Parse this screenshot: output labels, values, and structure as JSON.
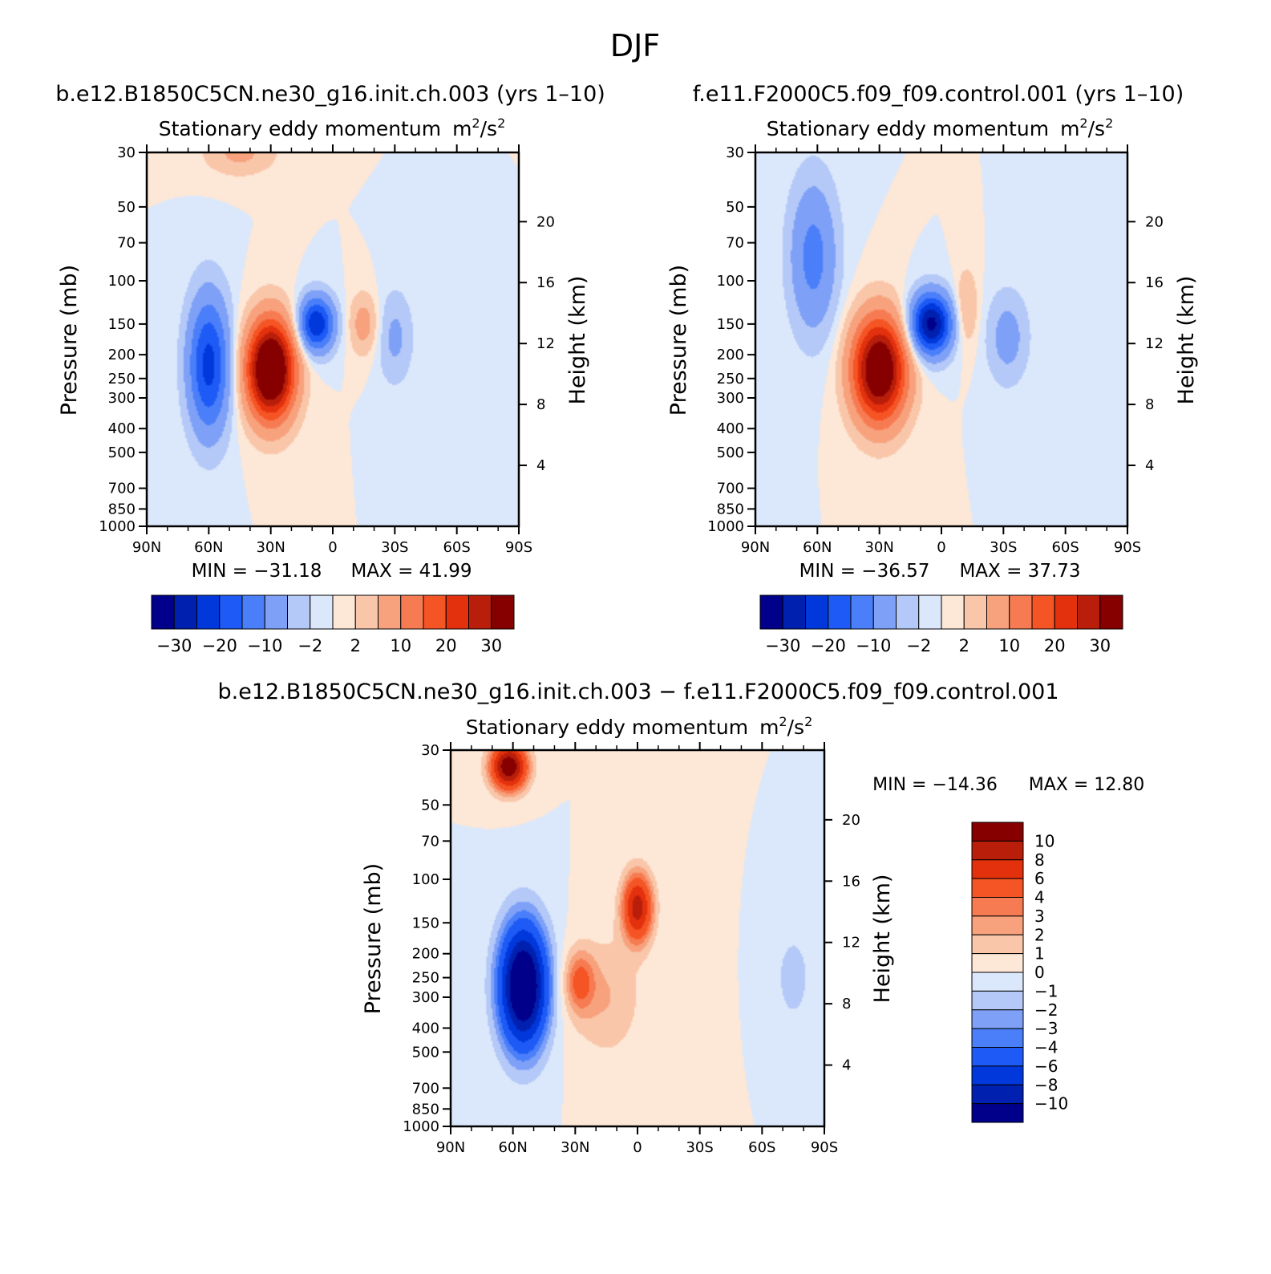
{
  "figure": {
    "title": "DJF"
  },
  "chart_data": [
    {
      "type": "heatmap",
      "run_title": "b.e12.B1850C5CN.ne30_g16.init.ch.003 (yrs 1–10)",
      "title": "Stationary eddy momentum",
      "units": "m",
      "units_exp": "2",
      "units_mid": "/s",
      "units_exp2": "2",
      "xlabel": "",
      "ylabel": "Pressure (mb)",
      "y2label": "Height (km)",
      "x_ticks": [
        {
          "value": 90,
          "label": "90N"
        },
        {
          "value": 60,
          "label": "60N"
        },
        {
          "value": 30,
          "label": "30N"
        },
        {
          "value": 0,
          "label": "0"
        },
        {
          "value": -30,
          "label": "30S"
        },
        {
          "value": -60,
          "label": "60S"
        },
        {
          "value": -90,
          "label": "90S"
        }
      ],
      "y_ticks": [
        {
          "value": 30,
          "label": "30"
        },
        {
          "value": 50,
          "label": "50"
        },
        {
          "value": 70,
          "label": "70"
        },
        {
          "value": 100,
          "label": "100"
        },
        {
          "value": 150,
          "label": "150"
        },
        {
          "value": 200,
          "label": "200"
        },
        {
          "value": 250,
          "label": "250"
        },
        {
          "value": 300,
          "label": "300"
        },
        {
          "value": 400,
          "label": "400"
        },
        {
          "value": 500,
          "label": "500"
        },
        {
          "value": 700,
          "label": "700"
        },
        {
          "value": 850,
          "label": "850"
        },
        {
          "value": 1000,
          "label": "1000"
        }
      ],
      "height_ticks": [
        {
          "value": 20,
          "label": "20"
        },
        {
          "value": 16,
          "label": "16"
        },
        {
          "value": 12,
          "label": "12"
        },
        {
          "value": 8,
          "label": "8"
        },
        {
          "value": 4,
          "label": "4"
        }
      ],
      "xlim": [
        90,
        -90
      ],
      "ylim": [
        30,
        1000
      ],
      "min_text": "MIN = −31.18",
      "max_text": "MAX = 41.99",
      "levels": [
        -30,
        -25,
        -20,
        -15,
        -10,
        -5,
        -2,
        0,
        2,
        5,
        10,
        15,
        20,
        25,
        30
      ],
      "colorbar_labels": [
        "−30",
        "−20",
        "−10",
        "−2",
        "2",
        "10",
        "20",
        "30"
      ],
      "features": [
        {
          "lat": 60,
          "p": 220,
          "amp": -22,
          "dlat": 7,
          "dlogp": 0.45
        },
        {
          "lat": 30,
          "p": 230,
          "amp": 45,
          "dlat": 8,
          "dlogp": 0.32
        },
        {
          "lat": 8,
          "p": 150,
          "amp": -25,
          "dlat": 6,
          "dlogp": 0.18
        },
        {
          "lat": -15,
          "p": 150,
          "amp": 7,
          "dlat": 5,
          "dlogp": 0.2
        },
        {
          "lat": -30,
          "p": 170,
          "amp": -6,
          "dlat": 6,
          "dlogp": 0.3
        },
        {
          "lat": 45,
          "p": 30,
          "amp": 6,
          "dlat": 12,
          "dlogp": 0.15
        }
      ]
    },
    {
      "type": "heatmap",
      "run_title": "f.e11.F2000C5.f09_f09.control.001 (yrs 1–10)",
      "title": "Stationary eddy momentum",
      "units": "m",
      "units_exp": "2",
      "units_mid": "/s",
      "units_exp2": "2",
      "xlabel": "",
      "ylabel": "Pressure (mb)",
      "y2label": "Height (km)",
      "x_ticks": [
        {
          "value": 90,
          "label": "90N"
        },
        {
          "value": 60,
          "label": "60N"
        },
        {
          "value": 30,
          "label": "30N"
        },
        {
          "value": 0,
          "label": "0"
        },
        {
          "value": -30,
          "label": "30S"
        },
        {
          "value": -60,
          "label": "60S"
        },
        {
          "value": -90,
          "label": "90S"
        }
      ],
      "y_ticks": [
        {
          "value": 30,
          "label": "30"
        },
        {
          "value": 50,
          "label": "50"
        },
        {
          "value": 70,
          "label": "70"
        },
        {
          "value": 100,
          "label": "100"
        },
        {
          "value": 150,
          "label": "150"
        },
        {
          "value": 200,
          "label": "200"
        },
        {
          "value": 250,
          "label": "250"
        },
        {
          "value": 300,
          "label": "300"
        },
        {
          "value": 400,
          "label": "400"
        },
        {
          "value": 500,
          "label": "500"
        },
        {
          "value": 700,
          "label": "700"
        },
        {
          "value": 850,
          "label": "850"
        },
        {
          "value": 1000,
          "label": "1000"
        }
      ],
      "height_ticks": [
        {
          "value": 20,
          "label": "20"
        },
        {
          "value": 16,
          "label": "16"
        },
        {
          "value": 12,
          "label": "12"
        },
        {
          "value": 8,
          "label": "8"
        },
        {
          "value": 4,
          "label": "4"
        }
      ],
      "xlim": [
        90,
        -90
      ],
      "ylim": [
        30,
        1000
      ],
      "min_text": "MIN = −36.57",
      "max_text": "MAX = 37.73",
      "levels": [
        -30,
        -25,
        -20,
        -15,
        -10,
        -5,
        -2,
        0,
        2,
        5,
        10,
        15,
        20,
        25,
        30
      ],
      "colorbar_labels": [
        "−30",
        "−20",
        "−10",
        "−2",
        "2",
        "10",
        "20",
        "30"
      ],
      "features": [
        {
          "lat": 62,
          "p": 80,
          "amp": -12,
          "dlat": 8,
          "dlogp": 0.5
        },
        {
          "lat": 30,
          "p": 230,
          "amp": 40,
          "dlat": 9,
          "dlogp": 0.34
        },
        {
          "lat": 5,
          "p": 150,
          "amp": -32,
          "dlat": 7,
          "dlogp": 0.2
        },
        {
          "lat": -12,
          "p": 130,
          "amp": 6,
          "dlat": 4,
          "dlogp": 0.25
        },
        {
          "lat": -32,
          "p": 170,
          "amp": -7,
          "dlat": 7,
          "dlogp": 0.3
        }
      ]
    },
    {
      "type": "heatmap",
      "run_title": "b.e12.B1850C5CN.ne30_g16.init.ch.003 − f.e11.F2000C5.f09_f09.control.001",
      "title": "Stationary eddy momentum",
      "units": "m",
      "units_exp": "2",
      "units_mid": "/s",
      "units_exp2": "2",
      "xlabel": "",
      "ylabel": "Pressure (mb)",
      "y2label": "Height (km)",
      "x_ticks": [
        {
          "value": 90,
          "label": "90N"
        },
        {
          "value": 60,
          "label": "60N"
        },
        {
          "value": 30,
          "label": "30N"
        },
        {
          "value": 0,
          "label": "0"
        },
        {
          "value": -30,
          "label": "30S"
        },
        {
          "value": -60,
          "label": "60S"
        },
        {
          "value": -90,
          "label": "90S"
        }
      ],
      "y_ticks": [
        {
          "value": 30,
          "label": "30"
        },
        {
          "value": 50,
          "label": "50"
        },
        {
          "value": 70,
          "label": "70"
        },
        {
          "value": 100,
          "label": "100"
        },
        {
          "value": 150,
          "label": "150"
        },
        {
          "value": 200,
          "label": "200"
        },
        {
          "value": 250,
          "label": "250"
        },
        {
          "value": 300,
          "label": "300"
        },
        {
          "value": 400,
          "label": "400"
        },
        {
          "value": 500,
          "label": "500"
        },
        {
          "value": 700,
          "label": "700"
        },
        {
          "value": 850,
          "label": "850"
        },
        {
          "value": 1000,
          "label": "1000"
        }
      ],
      "height_ticks": [
        {
          "value": 20,
          "label": "20"
        },
        {
          "value": 16,
          "label": "16"
        },
        {
          "value": 12,
          "label": "12"
        },
        {
          "value": 8,
          "label": "8"
        },
        {
          "value": 4,
          "label": "4"
        }
      ],
      "xlim": [
        90,
        -90
      ],
      "ylim": [
        30,
        1000
      ],
      "min_text": "MIN = −14.36",
      "max_text": "MAX = 12.80",
      "levels": [
        -10,
        -8,
        -6,
        -4,
        -3,
        -2,
        -1,
        0,
        1,
        2,
        3,
        4,
        6,
        8,
        10
      ],
      "colorbar_labels": [
        "10",
        "8",
        "6",
        "4",
        "3",
        "2",
        "1",
        "0",
        "−1",
        "−2",
        "−3",
        "−4",
        "−6",
        "−8",
        "−10"
      ],
      "features": [
        {
          "lat": 55,
          "p": 270,
          "amp": -14,
          "dlat": 8,
          "dlogp": 0.4
        },
        {
          "lat": 62,
          "p": 35,
          "amp": 12,
          "dlat": 6,
          "dlogp": 0.15
        },
        {
          "lat": 0,
          "p": 130,
          "amp": 9,
          "dlat": 5,
          "dlogp": 0.22
        },
        {
          "lat": 28,
          "p": 260,
          "amp": 4,
          "dlat": 5,
          "dlogp": 0.2
        },
        {
          "lat": 15,
          "p": 300,
          "amp": 2,
          "dlat": 12,
          "dlogp": 0.4
        },
        {
          "lat": -75,
          "p": 250,
          "amp": -2,
          "dlat": 5,
          "dlogp": 0.25
        }
      ]
    }
  ]
}
